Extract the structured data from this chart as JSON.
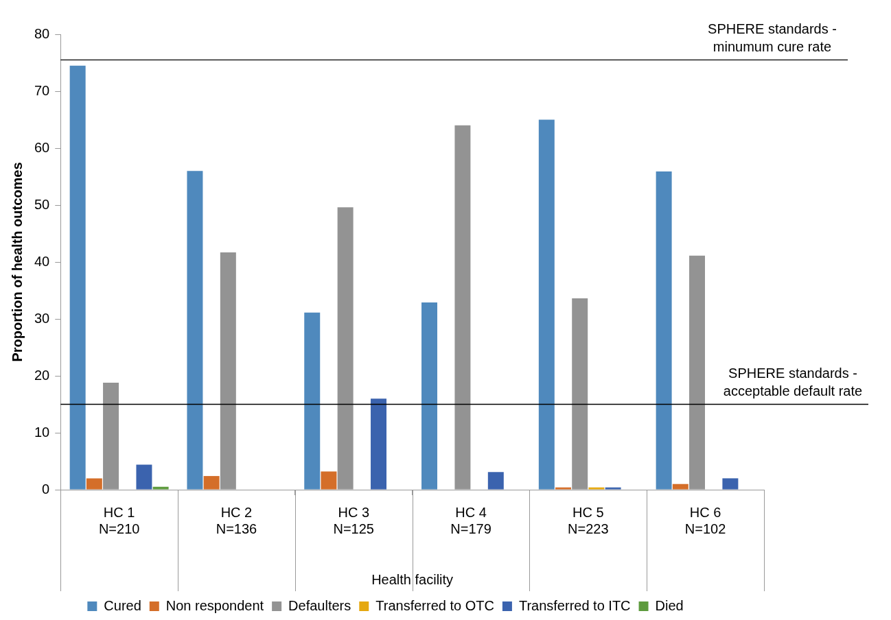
{
  "chart_data": {
    "type": "bar",
    "xlabel": "Health facility",
    "ylabel": "Proportion of health outcomes",
    "categories": [
      "HC 1\nN=210",
      "HC 2\nN=136",
      "HC 3\nN=125",
      "HC 4\nN=179",
      "HC 5\nN=223",
      "HC 6\nN=102"
    ],
    "series": [
      {
        "name": "Cured",
        "color": "#4f89bd",
        "values": [
          74.5,
          56.0,
          31.1,
          32.9,
          65.0,
          55.9
        ]
      },
      {
        "name": "Non respondent",
        "color": "#d46e29",
        "values": [
          2.0,
          2.4,
          3.2,
          0,
          0.4,
          1.0
        ]
      },
      {
        "name": "Defaulters",
        "color": "#939393",
        "values": [
          18.8,
          41.7,
          49.6,
          64.0,
          33.6,
          41.1
        ]
      },
      {
        "name": "Transferred to OTC",
        "color": "#e5a810",
        "values": [
          0,
          0,
          0,
          0,
          0.4,
          0
        ]
      },
      {
        "name": "Transferred to ITC",
        "color": "#3b63ae",
        "values": [
          4.4,
          0,
          16.0,
          3.1,
          0.4,
          2.0
        ]
      },
      {
        "name": "Died",
        "color": "#5e9b3e",
        "values": [
          0.5,
          0,
          0,
          0,
          0,
          0
        ]
      }
    ],
    "ylim": [
      0,
      80
    ],
    "yticks": [
      0,
      10,
      20,
      30,
      40,
      50,
      60,
      70,
      80
    ],
    "grid": false,
    "legend": "bottom",
    "ref_lines": [
      {
        "axis": "y",
        "value": 75.5,
        "label": "SPHERE standards - minumum cure rate",
        "color": "#000000"
      },
      {
        "axis": "y",
        "value": 15,
        "label": "SPHERE standards - acceptable default rate",
        "color": "#000000"
      }
    ]
  }
}
